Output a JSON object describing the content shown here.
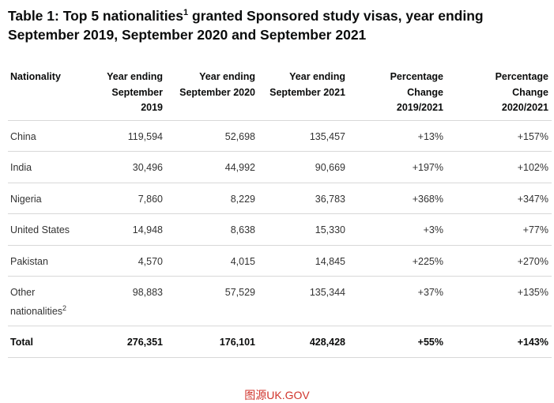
{
  "title": {
    "text_before": "Table 1: Top 5 nationalities",
    "footnote": "1",
    "text_after": " granted Sponsored study visas, year ending September 2019, September 2020 and September 2021"
  },
  "headers": [
    "Nationality",
    "Year ending September 2019",
    "Year ending September 2020",
    "Year ending September 2021",
    "Percentage Change 2019/2021",
    "Percentage Change 2020/2021"
  ],
  "rows": [
    {
      "nationality": "China",
      "y2019": "119,594",
      "y2020": "52,698",
      "y2021": "135,457",
      "pc1921": "+13%",
      "pc2021": "+157%"
    },
    {
      "nationality": "India",
      "y2019": "30,496",
      "y2020": "44,992",
      "y2021": "90,669",
      "pc1921": "+197%",
      "pc2021": "+102%"
    },
    {
      "nationality": "Nigeria",
      "y2019": "7,860",
      "y2020": "8,229",
      "y2021": "36,783",
      "pc1921": "+368%",
      "pc2021": "+347%"
    },
    {
      "nationality": "United States",
      "y2019": "14,948",
      "y2020": "8,638",
      "y2021": "15,330",
      "pc1921": "+3%",
      "pc2021": "+77%"
    },
    {
      "nationality": "Pakistan",
      "y2019": "4,570",
      "y2020": "4,015",
      "y2021": "14,845",
      "pc1921": "+225%",
      "pc2021": "+270%"
    },
    {
      "nationality": "Other nationalities",
      "footnote": "2",
      "y2019": "98,883",
      "y2020": "57,529",
      "y2021": "135,344",
      "pc1921": "+37%",
      "pc2021": "+135%"
    }
  ],
  "total": {
    "nationality": "Total",
    "y2019": "276,351",
    "y2020": "176,101",
    "y2021": "428,428",
    "pc1921": "+55%",
    "pc2021": "+143%"
  },
  "caption": "图源UK.GOV"
}
